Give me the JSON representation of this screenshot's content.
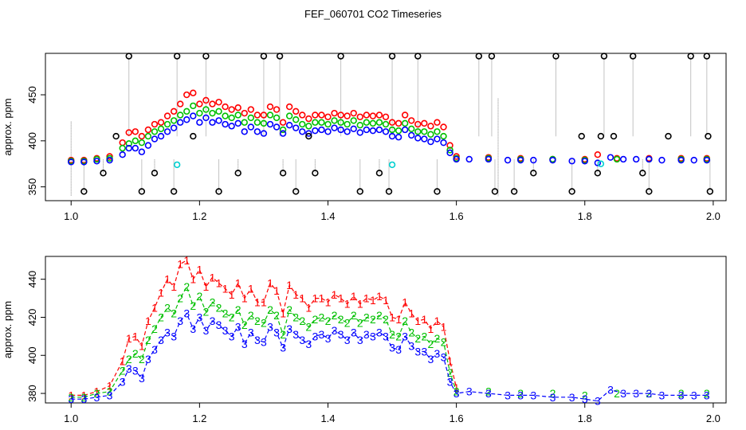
{
  "title": "FEF_060701  CO2 Timeseries",
  "colors": {
    "series1": "#ff0000",
    "series2": "#00c000",
    "series3": "#0000ff",
    "outlier": "#000000",
    "cyan": "#00d0d0",
    "spike": "#888888"
  },
  "chart_data": [
    {
      "type": "scatter",
      "panel": "top",
      "title": "",
      "xlabel": "",
      "ylabel": "approx. ppm",
      "xlim": [
        0.96,
        2.02
      ],
      "ylim": [
        335,
        495
      ],
      "x_ticks": [
        1.0,
        1.2,
        1.4,
        1.6,
        1.8,
        2.0
      ],
      "x_tick_labels": [
        "1.0",
        "1.2",
        "1.4",
        "1.6",
        "1.8",
        "2.0"
      ],
      "y_ticks": [
        350,
        400,
        450
      ],
      "y_tick_labels": [
        "350",
        "400",
        "450"
      ],
      "marker": "open-circle",
      "grid": false,
      "series": [
        {
          "color_key": "series1",
          "x": [
            1.0,
            1.02,
            1.04,
            1.06,
            1.08,
            1.09,
            1.1,
            1.11,
            1.12,
            1.13,
            1.14,
            1.15,
            1.16,
            1.17,
            1.18,
            1.19,
            1.2,
            1.21,
            1.22,
            1.23,
            1.24,
            1.25,
            1.26,
            1.27,
            1.28,
            1.29,
            1.3,
            1.31,
            1.32,
            1.33,
            1.34,
            1.35,
            1.36,
            1.37,
            1.38,
            1.39,
            1.4,
            1.41,
            1.42,
            1.43,
            1.44,
            1.45,
            1.46,
            1.47,
            1.48,
            1.49,
            1.5,
            1.51,
            1.52,
            1.53,
            1.54,
            1.55,
            1.56,
            1.57,
            1.58,
            1.59,
            1.6,
            1.65,
            1.7,
            1.75,
            1.8,
            1.82,
            1.85,
            1.9,
            1.95,
            1.99
          ],
          "y": [
            379,
            379,
            381,
            383,
            398,
            409,
            410,
            405,
            412,
            418,
            420,
            427,
            432,
            440,
            450,
            452,
            440,
            444,
            440,
            442,
            437,
            434,
            436,
            430,
            434,
            428,
            428,
            437,
            434,
            420,
            437,
            432,
            428,
            424,
            428,
            428,
            426,
            430,
            428,
            427,
            430,
            426,
            428,
            427,
            428,
            426,
            420,
            419,
            428,
            422,
            418,
            419,
            416,
            420,
            415,
            395,
            383,
            382,
            381,
            380,
            380,
            385,
            381,
            381,
            381,
            381
          ]
        },
        {
          "color_key": "series2",
          "x": [
            1.0,
            1.02,
            1.04,
            1.06,
            1.08,
            1.09,
            1.1,
            1.11,
            1.12,
            1.13,
            1.14,
            1.15,
            1.16,
            1.17,
            1.18,
            1.19,
            1.2,
            1.21,
            1.22,
            1.23,
            1.24,
            1.25,
            1.26,
            1.27,
            1.28,
            1.29,
            1.3,
            1.31,
            1.32,
            1.33,
            1.34,
            1.35,
            1.36,
            1.37,
            1.38,
            1.39,
            1.4,
            1.41,
            1.42,
            1.43,
            1.44,
            1.45,
            1.46,
            1.47,
            1.48,
            1.49,
            1.5,
            1.51,
            1.52,
            1.53,
            1.54,
            1.55,
            1.56,
            1.57,
            1.58,
            1.59,
            1.6,
            1.65,
            1.7,
            1.75,
            1.8,
            1.85,
            1.9,
            1.95,
            1.99
          ],
          "y": [
            378,
            378,
            380,
            381,
            392,
            397,
            400,
            398,
            405,
            410,
            413,
            418,
            422,
            428,
            432,
            438,
            430,
            434,
            430,
            432,
            427,
            425,
            428,
            420,
            425,
            420,
            419,
            428,
            425,
            412,
            427,
            423,
            418,
            416,
            420,
            420,
            418,
            422,
            420,
            418,
            422,
            417,
            420,
            419,
            420,
            418,
            412,
            411,
            419,
            413,
            410,
            410,
            407,
            410,
            405,
            390,
            381,
            381,
            380,
            380,
            379,
            380,
            380,
            380,
            380
          ]
        },
        {
          "color_key": "series3",
          "x": [
            1.0,
            1.02,
            1.04,
            1.06,
            1.08,
            1.09,
            1.1,
            1.11,
            1.12,
            1.13,
            1.14,
            1.15,
            1.16,
            1.17,
            1.18,
            1.19,
            1.2,
            1.21,
            1.22,
            1.23,
            1.24,
            1.25,
            1.26,
            1.27,
            1.28,
            1.29,
            1.3,
            1.31,
            1.32,
            1.33,
            1.34,
            1.35,
            1.36,
            1.37,
            1.38,
            1.39,
            1.4,
            1.41,
            1.42,
            1.43,
            1.44,
            1.45,
            1.46,
            1.47,
            1.48,
            1.49,
            1.5,
            1.51,
            1.52,
            1.53,
            1.54,
            1.55,
            1.56,
            1.57,
            1.58,
            1.59,
            1.6,
            1.62,
            1.65,
            1.68,
            1.7,
            1.72,
            1.75,
            1.78,
            1.8,
            1.82,
            1.84,
            1.86,
            1.88,
            1.9,
            1.92,
            1.95,
            1.97,
            1.99
          ],
          "y": [
            377,
            377,
            378,
            379,
            385,
            392,
            392,
            388,
            395,
            402,
            405,
            410,
            414,
            420,
            423,
            427,
            420,
            425,
            420,
            422,
            418,
            416,
            419,
            410,
            415,
            410,
            408,
            418,
            415,
            408,
            417,
            414,
            410,
            408,
            411,
            412,
            410,
            414,
            412,
            410,
            413,
            409,
            412,
            411,
            412,
            410,
            405,
            404,
            412,
            406,
            403,
            402,
            399,
            402,
            398,
            387,
            380,
            380,
            380,
            379,
            379,
            379,
            379,
            378,
            378,
            376,
            382,
            380,
            380,
            380,
            379,
            379,
            379,
            379
          ]
        },
        {
          "color_key": "outlier",
          "x": [
            1.02,
            1.05,
            1.07,
            1.09,
            1.11,
            1.13,
            1.16,
            1.165,
            1.19,
            1.21,
            1.23,
            1.26,
            1.3,
            1.325,
            1.33,
            1.35,
            1.37,
            1.38,
            1.42,
            1.45,
            1.48,
            1.495,
            1.5,
            1.54,
            1.57,
            1.635,
            1.655,
            1.66,
            1.69,
            1.72,
            1.755,
            1.78,
            1.795,
            1.82,
            1.825,
            1.83,
            1.845,
            1.875,
            1.89,
            1.9,
            1.93,
            1.965,
            1.99,
            1.992,
            1.995
          ],
          "y": [
            345,
            365,
            405,
            492,
            345,
            365,
            345,
            492,
            405,
            492,
            345,
            365,
            492,
            492,
            365,
            345,
            405,
            365,
            492,
            345,
            365,
            345,
            492,
            492,
            345,
            492,
            492,
            345,
            345,
            365,
            492,
            345,
            405,
            365,
            405,
            492,
            405,
            492,
            365,
            345,
            405,
            492,
            492,
            405,
            345
          ]
        },
        {
          "color_key": "cyan",
          "x": [
            1.165,
            1.5,
            1.825
          ],
          "y": [
            374,
            374,
            375
          ]
        }
      ]
    },
    {
      "type": "line",
      "panel": "bottom",
      "title": "",
      "xlabel": "",
      "ylabel": "approx. ppm",
      "xlim": [
        0.96,
        2.02
      ],
      "ylim": [
        375,
        452
      ],
      "x_ticks": [
        1.0,
        1.2,
        1.4,
        1.6,
        1.8,
        2.0
      ],
      "x_tick_labels": [
        "1.0",
        "1.2",
        "1.4",
        "1.6",
        "1.8",
        "2.0"
      ],
      "y_ticks": [
        380,
        400,
        420,
        440
      ],
      "y_tick_labels": [
        "380",
        "400",
        "420",
        "440"
      ],
      "grid": false,
      "series": [
        {
          "name": "1",
          "color_key": "series1",
          "x": [
            1.0,
            1.02,
            1.04,
            1.06,
            1.08,
            1.09,
            1.1,
            1.11,
            1.12,
            1.13,
            1.14,
            1.15,
            1.16,
            1.17,
            1.18,
            1.19,
            1.2,
            1.21,
            1.22,
            1.23,
            1.24,
            1.25,
            1.26,
            1.27,
            1.28,
            1.29,
            1.3,
            1.31,
            1.32,
            1.33,
            1.34,
            1.35,
            1.36,
            1.37,
            1.38,
            1.39,
            1.4,
            1.41,
            1.42,
            1.43,
            1.44,
            1.45,
            1.46,
            1.47,
            1.48,
            1.49,
            1.5,
            1.51,
            1.52,
            1.53,
            1.54,
            1.55,
            1.56,
            1.57,
            1.58,
            1.59,
            1.6
          ],
          "y": [
            379,
            379,
            381,
            384,
            397,
            409,
            410,
            405,
            418,
            425,
            433,
            440,
            436,
            448,
            450,
            440,
            445,
            436,
            441,
            438,
            435,
            432,
            438,
            430,
            435,
            428,
            428,
            438,
            434,
            422,
            437,
            432,
            430,
            425,
            430,
            430,
            428,
            432,
            430,
            427,
            431,
            427,
            430,
            429,
            431,
            429,
            420,
            419,
            428,
            422,
            418,
            419,
            414,
            418,
            415,
            397,
            383
          ]
        },
        {
          "name": "2",
          "color_key": "series2",
          "x": [
            1.0,
            1.02,
            1.04,
            1.06,
            1.08,
            1.09,
            1.1,
            1.11,
            1.12,
            1.13,
            1.14,
            1.15,
            1.16,
            1.17,
            1.18,
            1.19,
            1.2,
            1.21,
            1.22,
            1.23,
            1.24,
            1.25,
            1.26,
            1.27,
            1.28,
            1.29,
            1.3,
            1.31,
            1.32,
            1.33,
            1.34,
            1.35,
            1.36,
            1.37,
            1.38,
            1.39,
            1.4,
            1.41,
            1.42,
            1.43,
            1.44,
            1.45,
            1.46,
            1.47,
            1.48,
            1.49,
            1.5,
            1.51,
            1.52,
            1.53,
            1.54,
            1.55,
            1.56,
            1.57,
            1.58,
            1.59,
            1.6,
            1.65,
            1.7,
            1.75,
            1.8,
            1.85,
            1.9,
            1.95,
            1.99
          ],
          "y": [
            378,
            378,
            380,
            381,
            392,
            398,
            401,
            398,
            408,
            414,
            420,
            425,
            422,
            430,
            436,
            426,
            431,
            423,
            428,
            425,
            422,
            420,
            424,
            416,
            421,
            418,
            417,
            424,
            421,
            411,
            424,
            420,
            418,
            415,
            419,
            420,
            418,
            421,
            419,
            417,
            421,
            417,
            420,
            419,
            421,
            419,
            411,
            410,
            418,
            412,
            409,
            410,
            406,
            409,
            407,
            391,
            381,
            381,
            380,
            380,
            379,
            380,
            380,
            380,
            380
          ]
        },
        {
          "name": "3",
          "color_key": "series3",
          "x": [
            1.0,
            1.02,
            1.04,
            1.06,
            1.08,
            1.09,
            1.1,
            1.11,
            1.12,
            1.13,
            1.14,
            1.15,
            1.16,
            1.17,
            1.18,
            1.19,
            1.2,
            1.21,
            1.22,
            1.23,
            1.24,
            1.25,
            1.26,
            1.27,
            1.28,
            1.29,
            1.3,
            1.31,
            1.32,
            1.33,
            1.34,
            1.35,
            1.36,
            1.37,
            1.38,
            1.39,
            1.4,
            1.41,
            1.42,
            1.43,
            1.44,
            1.45,
            1.46,
            1.47,
            1.48,
            1.49,
            1.5,
            1.51,
            1.52,
            1.53,
            1.54,
            1.55,
            1.56,
            1.57,
            1.58,
            1.59,
            1.6,
            1.62,
            1.65,
            1.68,
            1.7,
            1.72,
            1.75,
            1.78,
            1.8,
            1.82,
            1.84,
            1.86,
            1.88,
            1.9,
            1.92,
            1.95,
            1.97,
            1.99
          ],
          "y": [
            377,
            377,
            378,
            379,
            386,
            393,
            392,
            388,
            398,
            403,
            408,
            412,
            410,
            418,
            422,
            414,
            420,
            413,
            418,
            416,
            413,
            410,
            415,
            406,
            412,
            408,
            407,
            415,
            412,
            404,
            414,
            411,
            408,
            406,
            410,
            411,
            409,
            413,
            411,
            408,
            412,
            408,
            411,
            410,
            412,
            410,
            404,
            403,
            410,
            405,
            402,
            402,
            398,
            401,
            399,
            386,
            380,
            381,
            380,
            379,
            379,
            379,
            378,
            378,
            377,
            376,
            382,
            380,
            380,
            380,
            379,
            379,
            379,
            379
          ]
        }
      ]
    }
  ]
}
